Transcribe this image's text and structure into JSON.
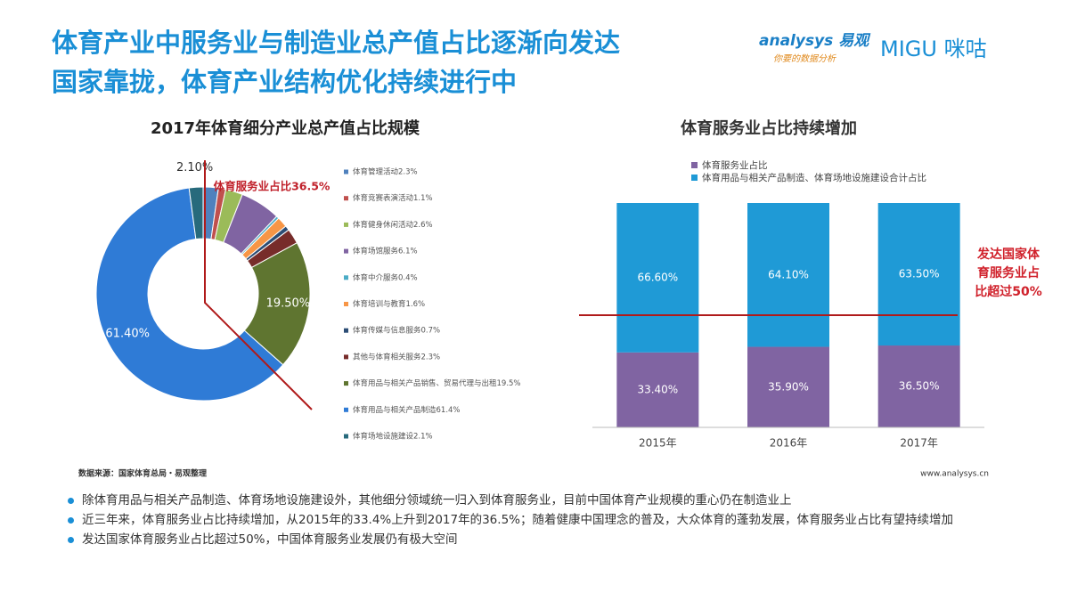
{
  "header": {
    "title_lines": [
      "体育产业中服务业与制造业总产值占比逐渐向发达",
      "国家靠拢，体育产业结构优化持续进行中"
    ],
    "logo_name": "analysys 易观",
    "logo_slogan": "你要的数据分析",
    "logo_partner": "MIGU 咪咕"
  },
  "chart_data": [
    {
      "type": "donut",
      "title": "2017年体育细分产业总产值占比规模",
      "annotation": "体育服务业占比36.5%",
      "categories": [
        "体育管理活动2.3%",
        "体育竞赛表演活动1.1%",
        "体育健身休闲活动2.6%",
        "体育场馆服务6.1%",
        "体育中介服务0.4%",
        "体育培训与教育1.6%",
        "体育传媒与信息服务0.7%",
        "其他与体育相关服务2.3%",
        "体育用品与相关产品销售、贸易代理与出租19.5%",
        "体育用品与相关产品制造61.4%",
        "体育场地设施建设2.1%"
      ],
      "values": [
        2.3,
        1.1,
        2.6,
        6.1,
        0.4,
        1.6,
        0.7,
        2.3,
        19.5,
        61.4,
        2.1
      ],
      "value_labels": [
        null,
        null,
        null,
        null,
        null,
        null,
        null,
        null,
        "19.50%",
        "61.40%",
        "2.10%"
      ],
      "colors": [
        "#4f81bd",
        "#c0504d",
        "#9bbb59",
        "#8064a2",
        "#4bacc6",
        "#f79646",
        "#2c4d75",
        "#772c2a",
        "#5f7530",
        "#2f7bd6",
        "#276a7c"
      ]
    },
    {
      "type": "stacked_bar",
      "title": "体育服务业占比持续增加",
      "categories": [
        "2015年",
        "2016年",
        "2017年"
      ],
      "series": [
        {
          "name": "体育服务业占比",
          "color": "#8064a2",
          "values": [
            33.4,
            35.9,
            36.5
          ],
          "value_labels": [
            "33.40%",
            "35.90%",
            "36.50%"
          ]
        },
        {
          "name": "体育用品与相关产品制造、体育场地设施建设合计占比",
          "color": "#1f9ad6",
          "values": [
            66.6,
            64.1,
            63.5
          ],
          "value_labels": [
            "66.60%",
            "64.10%",
            "63.50%"
          ]
        }
      ],
      "ylim": [
        0,
        100
      ],
      "threshold": 50,
      "annotation_lines": [
        "发达国家体",
        "育服务业占",
        "比超过50%"
      ]
    }
  ],
  "footer": {
    "source": "数据来源：国家体育总局・易观整理",
    "url": "www.analysys.cn"
  },
  "bullets": [
    "除体育用品与相关产品制造、体育场地设施建设外，其他细分领域统一归入到体育服务业，目前中国体育产业规模的重心仍在制造业上",
    "近三年来，体育服务业占比持续增加，从2015年的33.4%上升到2017年的36.5%；随着健康中国理念的普及，大众体育的蓬勃发展，体育服务业占比有望持续增加",
    "发达国家体育服务业占比超过50%，中国体育服务业发展仍有极大空间"
  ]
}
